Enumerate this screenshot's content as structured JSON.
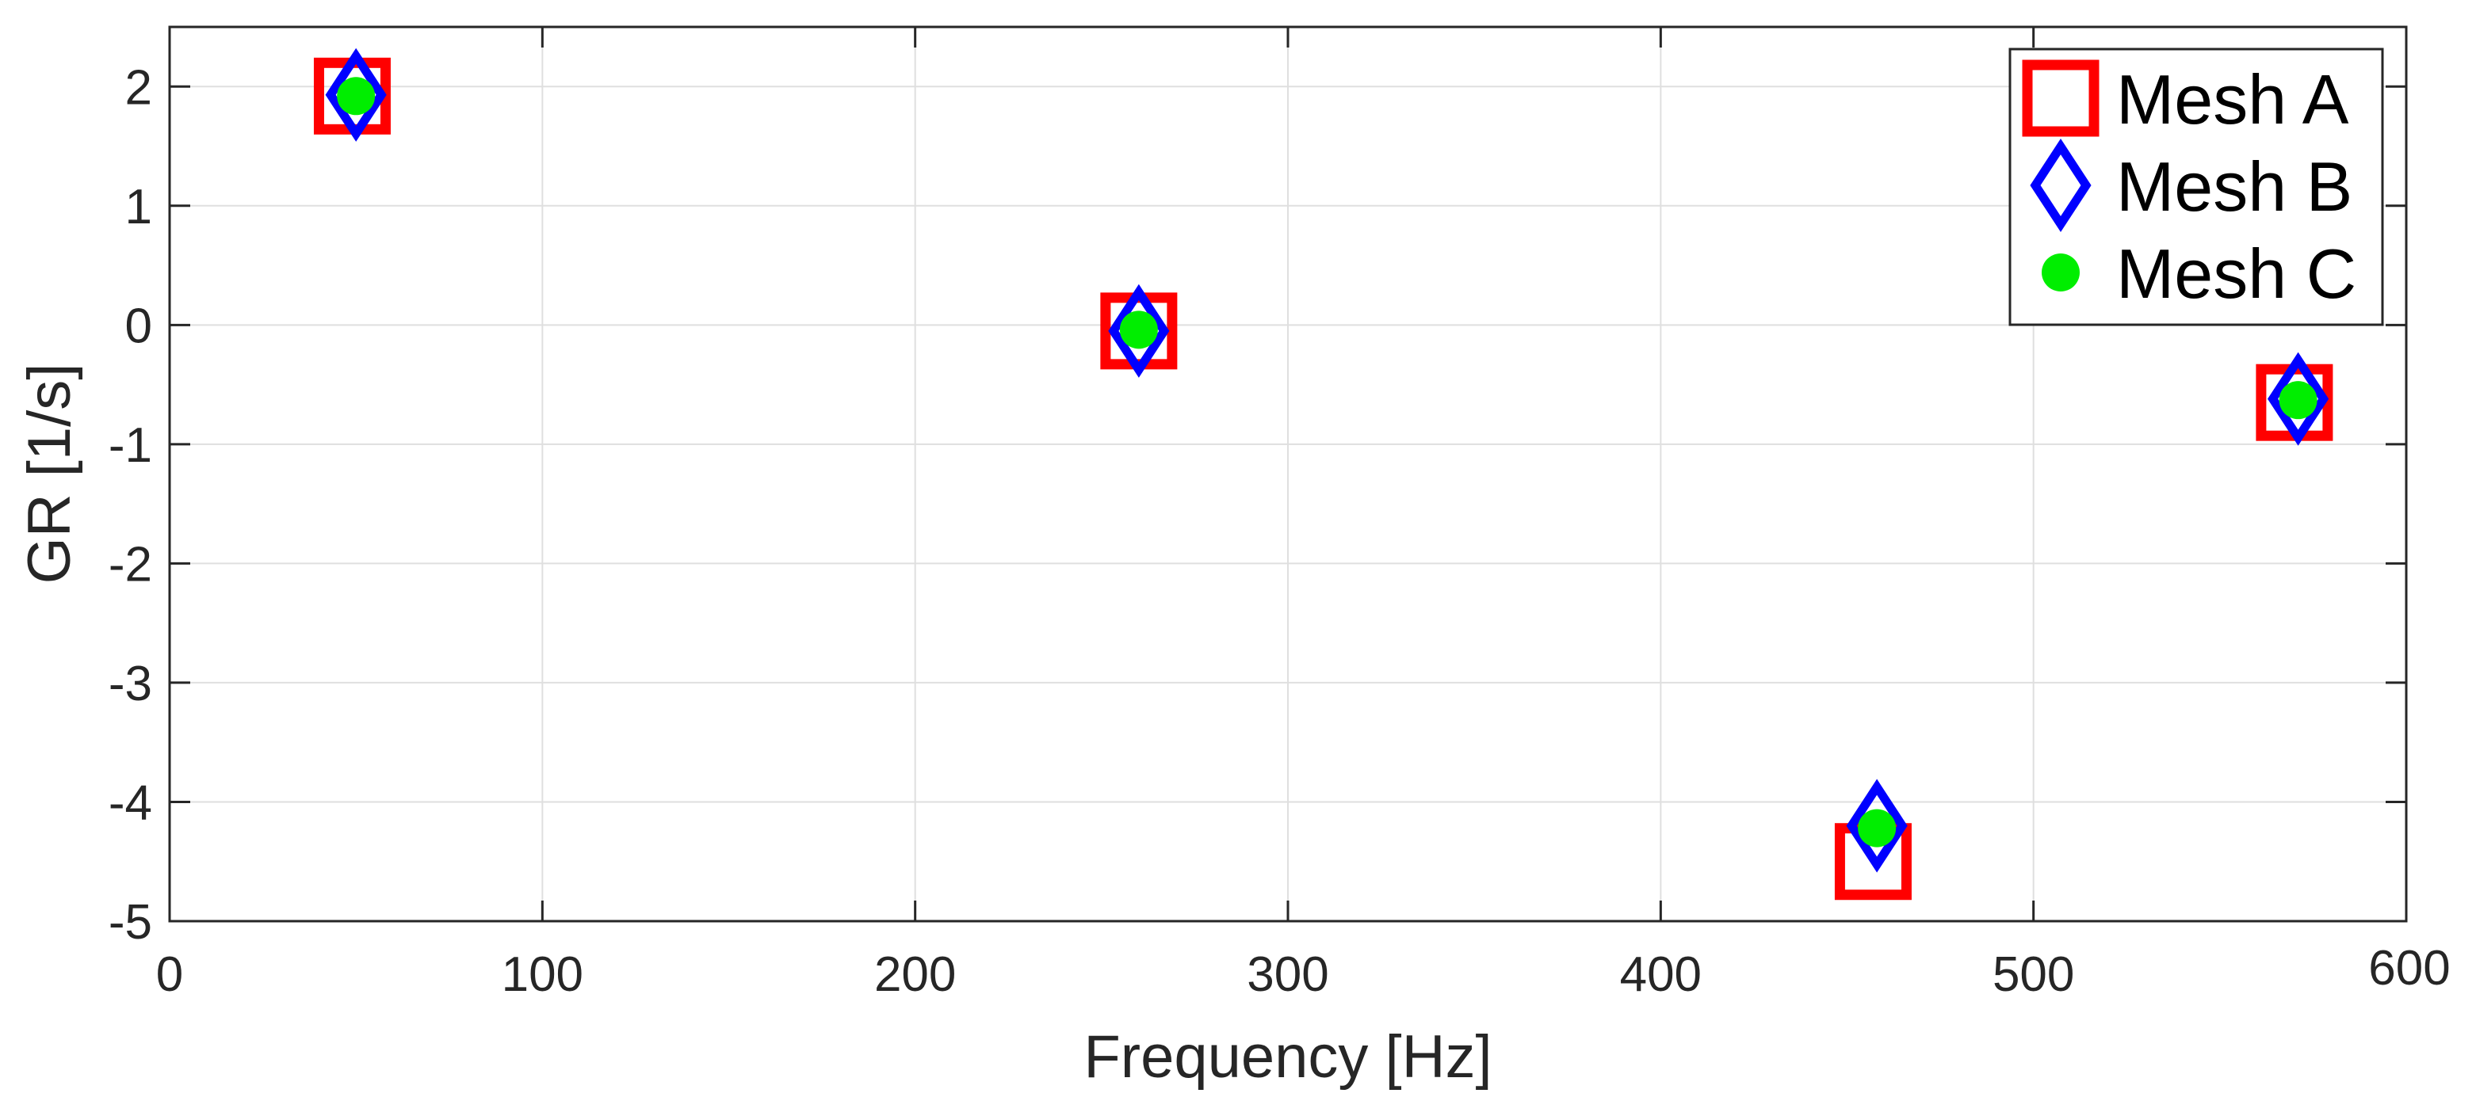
{
  "chart_data": {
    "type": "scatter",
    "xlabel": "Frequency [Hz]",
    "ylabel": "GR [1/s]",
    "xlim": [
      0,
      600
    ],
    "ylim": [
      -5,
      2.5
    ],
    "x_ticks": [
      "0",
      "100",
      "200",
      "300",
      "400",
      "500",
      "600"
    ],
    "y_ticks": [
      "2",
      "1",
      "0",
      "-1",
      "-2",
      "-3",
      "-4",
      "-5"
    ],
    "grid": true,
    "legend_position": "top-right",
    "series": [
      {
        "name": "Mesh A",
        "marker": "square",
        "color": "#ff0000",
        "points": [
          {
            "x": 49,
            "y": 1.92
          },
          {
            "x": 260,
            "y": -0.05
          },
          {
            "x": 457,
            "y": -4.5
          },
          {
            "x": 570,
            "y": -0.65
          }
        ]
      },
      {
        "name": "Mesh B",
        "marker": "diamond",
        "color": "#0000ff",
        "points": [
          {
            "x": 50,
            "y": 1.93
          },
          {
            "x": 260,
            "y": -0.05
          },
          {
            "x": 458,
            "y": -4.2
          },
          {
            "x": 571,
            "y": -0.62
          }
        ]
      },
      {
        "name": "Mesh C",
        "marker": "filled-circle",
        "color": "#00ee00",
        "points": [
          {
            "x": 50,
            "y": 1.92
          },
          {
            "x": 260,
            "y": -0.04
          },
          {
            "x": 458,
            "y": -4.22
          },
          {
            "x": 571,
            "y": -0.63
          }
        ]
      }
    ]
  }
}
